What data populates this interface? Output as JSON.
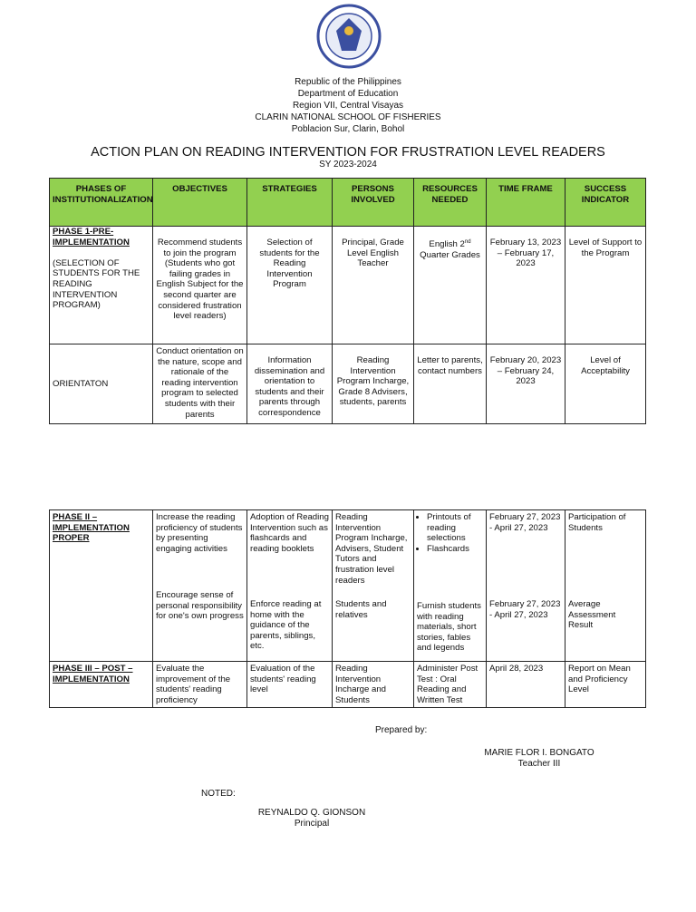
{
  "header": {
    "lines": [
      "Republic of the Philippines",
      "Department of Education",
      "Region VII, Central Visayas",
      "CLARIN NATIONAL SCHOOL OF FISHERIES",
      "Poblacion Sur, Clarin, Bohol"
    ],
    "title": "ACTION PLAN ON READING INTERVENTION FOR FRUSTRATION LEVEL READERS",
    "sy": "SY 2023-2024",
    "logo_text": "KAGAWARAN NG EDUKASYON"
  },
  "table": {
    "columns": [
      "PHASES OF INSTITUTIONALIZATION",
      "OBJECTIVES",
      "STRATEGIES",
      "PERSONS INVOLVED",
      "RESOURCES NEEDED",
      "TIME FRAME",
      "SUCCESS INDICATOR"
    ],
    "header_color": "#92d050",
    "phase1": {
      "title": "PHASE 1-PRE-IMPLEMENTATION",
      "sub": "(SELECTION OF STUDENTS FOR THE READING INTERVENTION PROGRAM)",
      "obj": "Recommend students to join the program (Students who got failing grades in English Subject for the second quarter are considered frustration level readers)",
      "strat": "Selection of students for the Reading Intervention Program",
      "persons": "Principal, Grade Level English Teacher",
      "res_a": "English 2",
      "res_sup": "nd",
      "res_b": " Quarter Grades",
      "time": "February 13, 2023 – February 17, 2023",
      "ind": "Level of Support to the Program"
    },
    "orientation": {
      "title": "ORIENTATON",
      "obj": "Conduct orientation on the nature, scope and rationale of the reading intervention program to selected students with their parents",
      "strat": "Information dissemination and orientation to students and their parents through correspondence",
      "persons": "Reading Intervention Program Incharge, Grade 8 Advisers, students, parents",
      "res": "Letter to parents, contact numbers",
      "time": "February 20, 2023 – February  24, 2023",
      "ind": "Level of Acceptability"
    },
    "phase2": {
      "title": "PHASE II – IMPLEMENTATION PROPER",
      "obj1": "Increase the reading proficiency of students by presenting engaging activities",
      "strat1": "Adoption of Reading Intervention such as flashcards and reading booklets",
      "persons1": "Reading Intervention Program Incharge, Advisers, Student Tutors and frustration level readers",
      "res1": [
        "Printouts of reading selections",
        "Flashcards"
      ],
      "time1": "February 27, 2023 - April 27, 2023",
      "ind1": "Participation of Students",
      "obj2": "Encourage sense of personal responsibility for one's own progress",
      "strat2": "Enforce reading at home with the guidance of the parents, siblings, etc.",
      "persons2": "Students and relatives",
      "res2": "Furnish students with reading materials, short stories, fables and legends",
      "time2": "February 27, 2023 - April 27, 2023",
      "ind2": "Average Assessment Result"
    },
    "phase3": {
      "title": "PHASE III – POST – IMPLEMENTATION",
      "obj": "Evaluate the improvement of the students' reading proficiency",
      "strat": "Evaluation of the students' reading level",
      "persons": "Reading Intervention Incharge and Students",
      "res": "Administer Post Test : Oral Reading and Written Test",
      "time": "April 28, 2023",
      "ind": "Report on Mean and Proficiency Level"
    }
  },
  "signatures": {
    "prepared_label": "Prepared by:",
    "preparer_name": "MARIE FLOR I. BONGATO",
    "preparer_title": "Teacher III",
    "noted_label": "NOTED:",
    "noter_name": "REYNALDO Q. GIONSON",
    "noter_title": "Principal"
  }
}
